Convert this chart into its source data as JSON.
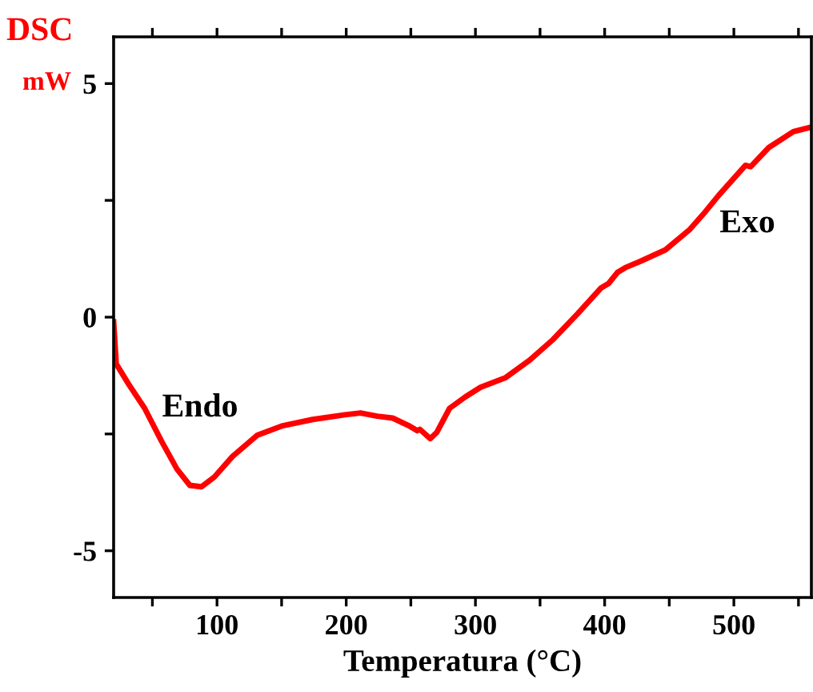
{
  "chart_data": {
    "type": "line",
    "ylabel": "DSC",
    "xlabel": "Temperatura (°C)",
    "annotations": [
      "mW",
      "Endo",
      "Exo"
    ],
    "x": [
      20,
      22,
      32,
      44,
      57,
      69,
      79,
      88,
      98,
      112,
      131,
      150,
      174,
      199,
      211,
      224,
      236,
      249,
      255,
      257,
      265,
      270,
      280,
      292,
      304,
      323,
      342,
      360,
      379,
      397,
      403,
      410,
      416,
      428,
      447,
      466,
      478,
      488,
      509,
      513,
      527,
      546,
      560
    ],
    "series": [
      {
        "color": "#ff0000",
        "values": [
          -0.1,
          -1.0,
          -1.45,
          -1.95,
          -2.65,
          -3.25,
          -3.6,
          -3.63,
          -3.42,
          -2.98,
          -2.53,
          -2.33,
          -2.19,
          -2.09,
          -2.05,
          -2.12,
          -2.16,
          -2.33,
          -2.43,
          -2.4,
          -2.6,
          -2.47,
          -1.95,
          -1.71,
          -1.5,
          -1.3,
          -0.92,
          -0.48,
          0.07,
          0.62,
          0.72,
          0.96,
          1.06,
          1.2,
          1.44,
          1.88,
          2.26,
          2.6,
          3.25,
          3.22,
          3.63,
          3.97,
          4.07
        ]
      }
    ],
    "xlim": [
      20,
      560
    ],
    "ylim": [
      -6,
      6
    ],
    "xticks": [
      {
        "value": 50,
        "label": null
      },
      100,
      {
        "value": 150,
        "label": null
      },
      200,
      {
        "value": 250,
        "label": null
      },
      300,
      {
        "value": 350,
        "label": null
      },
      400,
      {
        "value": 450,
        "label": null
      },
      500,
      {
        "value": 550,
        "label": null
      }
    ],
    "yticks": [
      -5,
      {
        "value": -2.5,
        "label": null
      },
      0,
      {
        "value": 2.5,
        "label": null
      },
      5
    ],
    "grid": false,
    "legend": false,
    "marker": "none",
    "line_style": "solid"
  }
}
